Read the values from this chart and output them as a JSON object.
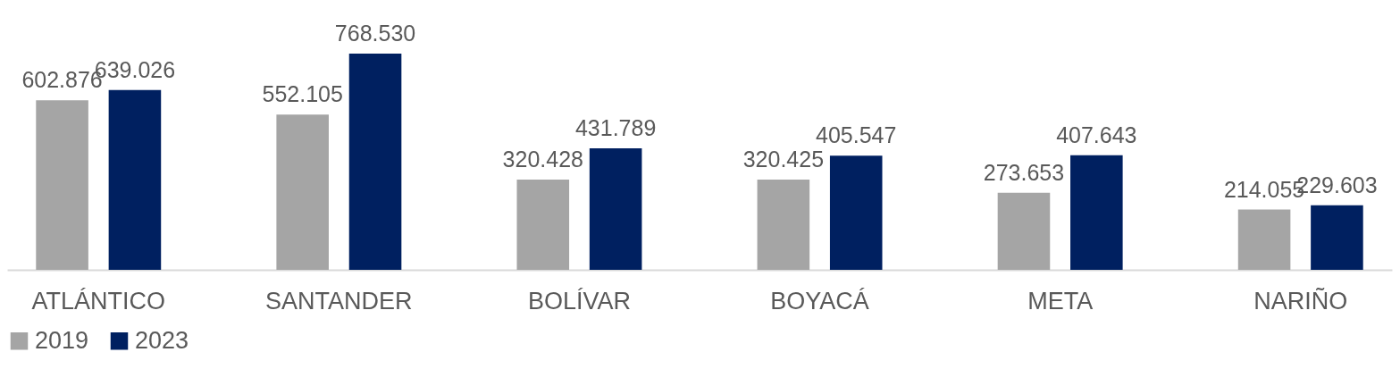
{
  "chart_data": {
    "type": "bar",
    "categories": [
      "ATLÁNTICO",
      "SANTANDER",
      "BOLÍVAR",
      "BOYACÁ",
      "META",
      "NARIÑO"
    ],
    "series": [
      {
        "name": "2019",
        "color": "#a5a5a5",
        "values": [
          602876,
          552105,
          320428,
          320425,
          273653,
          214055
        ],
        "value_labels": [
          "602.876",
          "552.105",
          "320.428",
          "320.425",
          "273.653",
          "214.055"
        ]
      },
      {
        "name": "2023",
        "color": "#002060",
        "values": [
          639026,
          768530,
          431789,
          405547,
          407643,
          229603
        ],
        "value_labels": [
          "639.026",
          "768.530",
          "431.789",
          "405.547",
          "407.643",
          "229.603"
        ]
      }
    ],
    "legend": "bottom"
  }
}
